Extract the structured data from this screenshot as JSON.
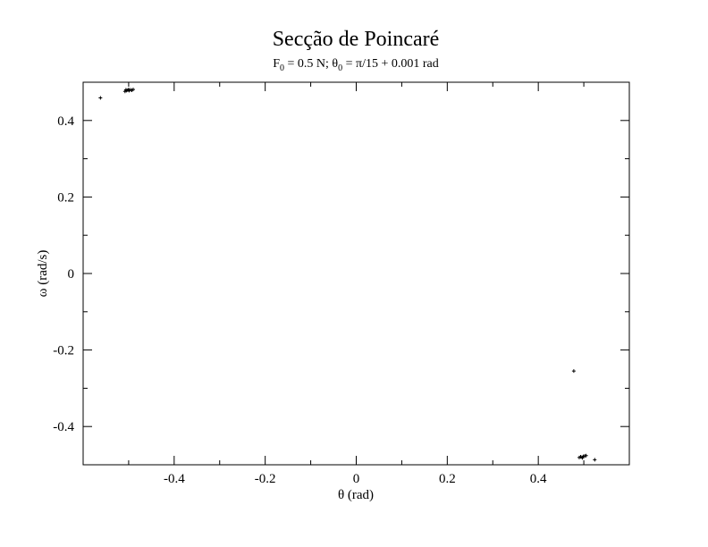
{
  "chart_data": {
    "type": "scatter",
    "title": "Secção de Poincaré",
    "subtitle": {
      "p1": "F",
      "s1": "0",
      "p2": " = 0.5 N; θ",
      "s2": "0",
      "p3": " = π/15 + 0.001 rad"
    },
    "xlabel": "θ (rad)",
    "ylabel": "ω (rad/s)",
    "xlim": [
      -0.6,
      0.6
    ],
    "ylim": [
      -0.5,
      0.5
    ],
    "x_ticks": [
      -0.4,
      -0.2,
      0,
      0.2,
      0.4
    ],
    "x_tick_labels": [
      "-0.4",
      "-0.2",
      "0",
      "0.2",
      "0.4"
    ],
    "y_ticks": [
      -0.4,
      -0.2,
      0,
      0.2,
      0.4
    ],
    "y_tick_labels": [
      "-0.4",
      "-0.2",
      "0",
      "0.2",
      "0.4"
    ],
    "grid": false,
    "marker": "plus",
    "marker_color": "#000000",
    "points": [
      {
        "x": -0.562,
        "y": 0.459
      },
      {
        "x": -0.508,
        "y": 0.476
      },
      {
        "x": -0.505,
        "y": 0.478
      },
      {
        "x": -0.502,
        "y": 0.479
      },
      {
        "x": -0.499,
        "y": 0.478
      },
      {
        "x": -0.496,
        "y": 0.48
      },
      {
        "x": -0.493,
        "y": 0.479
      },
      {
        "x": -0.49,
        "y": 0.481
      },
      {
        "x": -0.5,
        "y": 0.481
      },
      {
        "x": -0.506,
        "y": 0.48
      },
      {
        "x": 0.478,
        "y": -0.255
      },
      {
        "x": 0.49,
        "y": -0.481
      },
      {
        "x": 0.493,
        "y": -0.479
      },
      {
        "x": 0.496,
        "y": -0.48
      },
      {
        "x": 0.499,
        "y": -0.478
      },
      {
        "x": 0.502,
        "y": -0.477
      },
      {
        "x": 0.505,
        "y": -0.476
      },
      {
        "x": 0.497,
        "y": -0.482
      },
      {
        "x": 0.524,
        "y": -0.487
      }
    ]
  }
}
